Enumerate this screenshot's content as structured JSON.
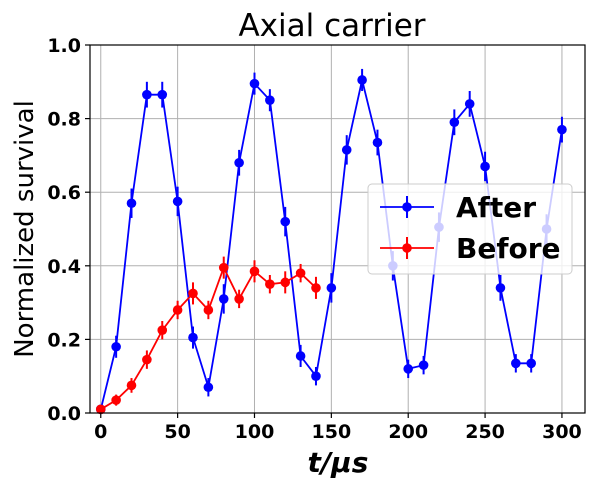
{
  "chart_data": {
    "type": "line",
    "title": "Axial carrier",
    "xlabel": "t/μs",
    "ylabel": "Normalized survival",
    "xlim": [
      -7,
      315
    ],
    "ylim": [
      0,
      1
    ],
    "xticks": [
      0,
      50,
      100,
      150,
      200,
      250,
      300
    ],
    "yticks": [
      0.0,
      0.2,
      0.4,
      0.6,
      0.8,
      1.0
    ],
    "xtick_labels": [
      "0",
      "50",
      "100",
      "150",
      "200",
      "250",
      "300"
    ],
    "ytick_labels": [
      "0.0",
      "0.2",
      "0.4",
      "0.6",
      "0.8",
      "1.0"
    ],
    "grid": true,
    "legend_position": "center-right",
    "series": [
      {
        "name": "After",
        "color": "#0000ff",
        "x": [
          0,
          10,
          20,
          30,
          40,
          50,
          60,
          70,
          80,
          90,
          100,
          110,
          120,
          130,
          140,
          150,
          160,
          170,
          180,
          190,
          200,
          210,
          220,
          230,
          240,
          250,
          260,
          270,
          280,
          290,
          300
        ],
        "y": [
          0.01,
          0.18,
          0.57,
          0.865,
          0.865,
          0.575,
          0.205,
          0.07,
          0.31,
          0.68,
          0.895,
          0.85,
          0.52,
          0.155,
          0.1,
          0.34,
          0.715,
          0.905,
          0.735,
          0.4,
          0.12,
          0.13,
          0.505,
          0.79,
          0.84,
          0.67,
          0.34,
          0.135,
          0.135,
          0.5,
          0.77
        ],
        "err": [
          0.01,
          0.03,
          0.04,
          0.035,
          0.035,
          0.04,
          0.03,
          0.025,
          0.04,
          0.035,
          0.03,
          0.03,
          0.04,
          0.03,
          0.025,
          0.04,
          0.04,
          0.03,
          0.035,
          0.04,
          0.025,
          0.025,
          0.04,
          0.035,
          0.035,
          0.04,
          0.035,
          0.025,
          0.025,
          0.04,
          0.035
        ]
      },
      {
        "name": "Before",
        "color": "#ff0000",
        "x": [
          0,
          10,
          20,
          30,
          40,
          50,
          60,
          70,
          80,
          90,
          100,
          110,
          120,
          130,
          140
        ],
        "y": [
          0.01,
          0.035,
          0.075,
          0.145,
          0.225,
          0.28,
          0.325,
          0.28,
          0.395,
          0.31,
          0.385,
          0.35,
          0.355,
          0.38,
          0.34
        ],
        "err": [
          0.01,
          0.015,
          0.02,
          0.025,
          0.025,
          0.025,
          0.03,
          0.025,
          0.03,
          0.025,
          0.03,
          0.025,
          0.03,
          0.025,
          0.03
        ]
      }
    ]
  }
}
